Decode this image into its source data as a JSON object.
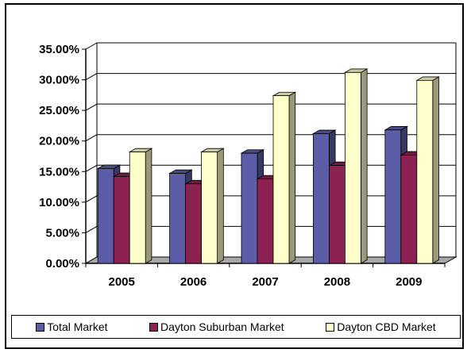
{
  "chart_data": {
    "type": "bar",
    "title": "",
    "xlabel": "",
    "ylabel": "",
    "categories": [
      "2005",
      "2006",
      "2007",
      "2008",
      "2009"
    ],
    "yticks": [
      "0.00%",
      "5.00%",
      "10.00%",
      "15.00%",
      "20.00%",
      "25.00%",
      "30.00%",
      "35.00%"
    ],
    "ylim": [
      0,
      35
    ],
    "y_unit": "%",
    "grid": true,
    "legend_position": "bottom",
    "series": [
      {
        "name": "Total Market",
        "values": [
          15.5,
          14.7,
          18.0,
          21.2,
          21.8
        ],
        "color": "#5b5ea6"
      },
      {
        "name": "Dayton Suburban Market",
        "values": [
          14.2,
          13.0,
          13.8,
          16.0,
          17.7
        ],
        "color": "#8b2252"
      },
      {
        "name": "Dayton CBD Market",
        "values": [
          18.2,
          18.2,
          27.4,
          31.2,
          29.9
        ],
        "color": "#ffffcc"
      }
    ]
  }
}
